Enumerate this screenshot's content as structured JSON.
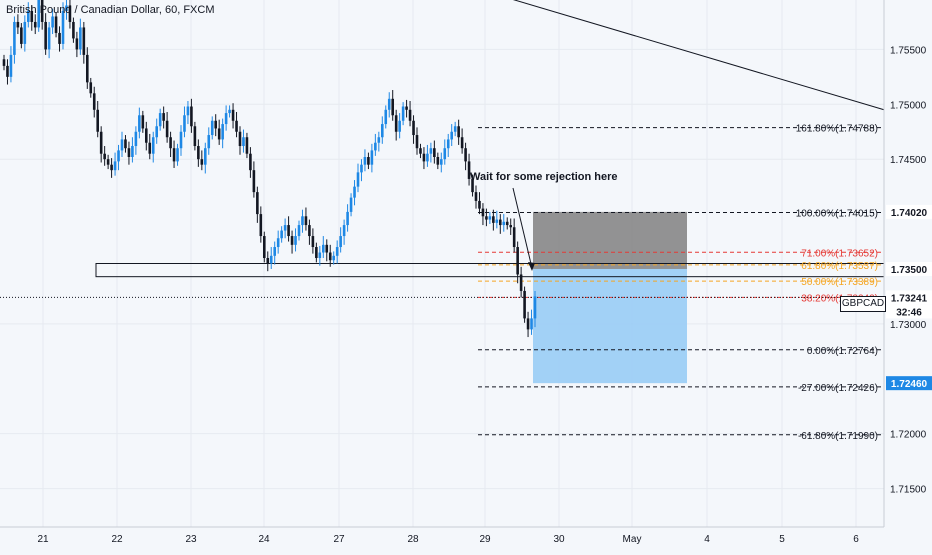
{
  "chart_data": {
    "type": "candlestick",
    "symbol": "GBPCAD",
    "title": "British Pound / Canadian Dollar, 60, FXCM",
    "x_ticks": [
      "21",
      "22",
      "23",
      "24",
      "27",
      "28",
      "29",
      "30",
      "May",
      "4",
      "5",
      "6"
    ],
    "y_ticks": [
      "1.75500",
      "1.75000",
      "1.74500",
      "1.73000",
      "1.72000",
      "1.71500"
    ],
    "ylim": [
      1.7115,
      1.7595
    ],
    "price_axis_labels": {
      "level_high": "1.74020",
      "level_support": "1.73500",
      "last_price": "1.73241",
      "countdown": "32:46",
      "level_target": "1.72460"
    },
    "price_label": "GBPCAD",
    "annotation": "Wait for some rejection here",
    "fib_levels": [
      {
        "label": "161.80%(1.74788)",
        "value": 1.74788,
        "color": "#131722",
        "style": "dashed"
      },
      {
        "label": "100.00%(1.74015)",
        "value": 1.74015,
        "color": "#131722",
        "style": "dashed"
      },
      {
        "label": "71.00%(1.73652)",
        "value": 1.73652,
        "color": "#e53935",
        "style": "dashed"
      },
      {
        "label": "61.80%(1.73537)",
        "value": 1.73537,
        "color": "#f5a623",
        "style": "dashed"
      },
      {
        "label": "50.00%(1.73389)",
        "value": 1.73389,
        "color": "#f5a623",
        "style": "dashed"
      },
      {
        "label": "38.20%(1.73242)",
        "value": 1.73242,
        "color": "#e53935",
        "style": "dotted"
      },
      {
        "label": "0.00%(1.72764)",
        "value": 1.72764,
        "color": "#131722",
        "style": "dashed"
      },
      {
        "label": "-27.00%(1.72426)",
        "value": 1.72426,
        "color": "#131722",
        "style": "dashed"
      },
      {
        "label": "-61.80%(1.71990)",
        "value": 1.7199,
        "color": "#131722",
        "style": "dashed"
      }
    ],
    "position": {
      "stop_zone": [
        1.735,
        1.7402
      ],
      "target_zone": [
        1.7246,
        1.735
      ],
      "stop_color": "#808080",
      "target_color": "#99ccf5"
    },
    "support_zone": [
      1.7343,
      1.7355
    ],
    "trendline": {
      "from": 1.7645,
      "to": 1.7495
    },
    "last_price": 1.73241,
    "candles_close": [
      1.7535,
      1.7525,
      1.7545,
      1.7575,
      1.757,
      1.7555,
      1.7575,
      1.7585,
      1.7575,
      1.757,
      1.7595,
      1.7575,
      1.755,
      1.757,
      1.758,
      1.7565,
      1.7555,
      1.7585,
      1.759,
      1.7575,
      1.756,
      1.755,
      1.757,
      1.7545,
      1.752,
      1.751,
      1.7495,
      1.7475,
      1.7455,
      1.745,
      1.7445,
      1.744,
      1.7448,
      1.7458,
      1.7468,
      1.746,
      1.7452,
      1.7462,
      1.7475,
      1.749,
      1.7478,
      1.7465,
      1.7455,
      1.747,
      1.748,
      1.7492,
      1.7485,
      1.747,
      1.746,
      1.7448,
      1.746,
      1.7475,
      1.749,
      1.7498,
      1.748,
      1.7462,
      1.745,
      1.7445,
      1.746,
      1.7472,
      1.7485,
      1.7478,
      1.7468,
      1.7482,
      1.7492,
      1.7495,
      1.7485,
      1.7475,
      1.7462,
      1.747,
      1.7455,
      1.744,
      1.742,
      1.74,
      1.738,
      1.736,
      1.7355,
      1.7362,
      1.737,
      1.7378,
      1.7385,
      1.739,
      1.738,
      1.7372,
      1.738,
      1.739,
      1.7398,
      1.739,
      1.738,
      1.737,
      1.736,
      1.7365,
      1.7372,
      1.7365,
      1.7358,
      1.7362,
      1.737,
      1.738,
      1.739,
      1.7402,
      1.7415,
      1.7425,
      1.7438,
      1.7445,
      1.7452,
      1.7445,
      1.7458,
      1.7465,
      1.747,
      1.7482,
      1.7495,
      1.7505,
      1.749,
      1.7475,
      1.7485,
      1.7498,
      1.7495,
      1.7485,
      1.7472,
      1.746,
      1.7455,
      1.7448,
      1.7455,
      1.746,
      1.7452,
      1.7445,
      1.745,
      1.746,
      1.7468,
      1.7475,
      1.748,
      1.747,
      1.746,
      1.7448,
      1.7432,
      1.742,
      1.7412,
      1.7405,
      1.7398,
      1.7395,
      1.7398,
      1.7392,
      1.7395,
      1.739,
      1.7393,
      1.739,
      1.7388,
      1.737,
      1.7345,
      1.733,
      1.7305,
      1.7295,
      1.7305,
      1.7325
    ]
  }
}
